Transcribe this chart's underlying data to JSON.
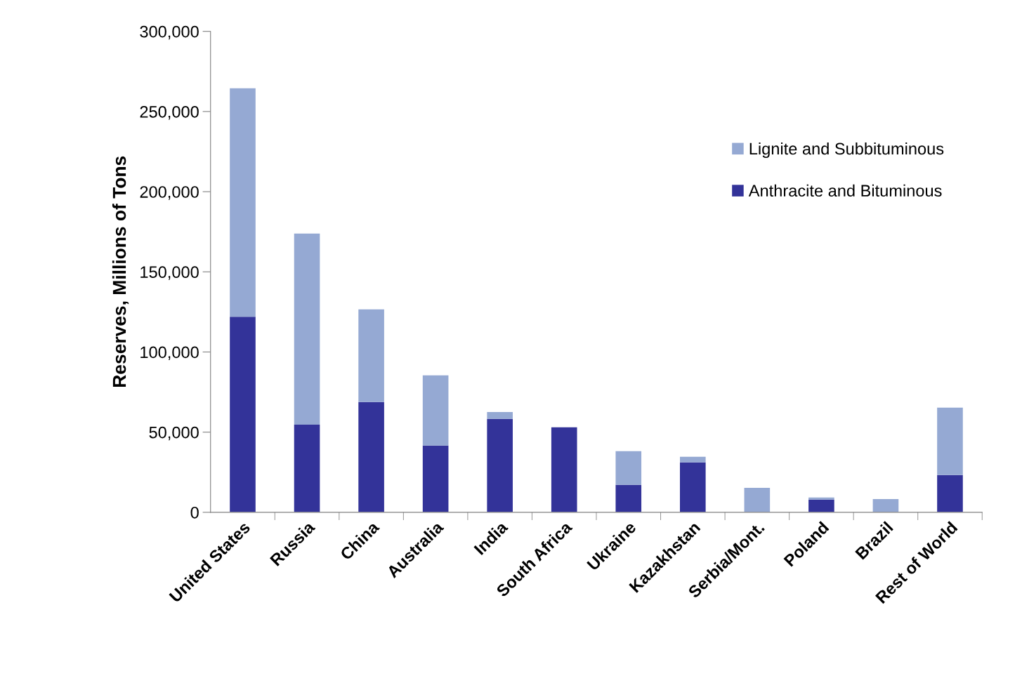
{
  "chart_data": {
    "type": "bar",
    "stacked": true,
    "ylabel": "Reserves, Millions of Tons",
    "categories": [
      "United States",
      "Russia",
      "China",
      "Australia",
      "India",
      "South Africa",
      "Ukraine",
      "Kazakhstan",
      "Serbia/Mont.",
      "Poland",
      "Brazil",
      "Rest of World"
    ],
    "series": [
      {
        "name": "Anthracite and Bituminous",
        "color": "#333399",
        "values": [
          122000,
          54700,
          68800,
          41600,
          58300,
          53000,
          17100,
          31100,
          null,
          7900,
          0,
          23200
        ]
      },
      {
        "name": "Lignite and Subbituminous",
        "color": "#95a9d3",
        "values": [
          142500,
          119200,
          57800,
          43800,
          4300,
          0,
          21000,
          3500,
          15300,
          1300,
          8300,
          42100
        ]
      }
    ],
    "ylim": [
      0,
      300000
    ],
    "yticks": [
      {
        "value": 0,
        "label": "0"
      },
      {
        "value": 50000,
        "label": "50,000"
      },
      {
        "value": 100000,
        "label": "100,000"
      },
      {
        "value": 150000,
        "label": "150,000"
      },
      {
        "value": 200000,
        "label": "200,000"
      },
      {
        "value": 250000,
        "label": "250,000"
      },
      {
        "value": 300000,
        "label": "300,000"
      }
    ],
    "grid": false,
    "legend": "top right"
  }
}
